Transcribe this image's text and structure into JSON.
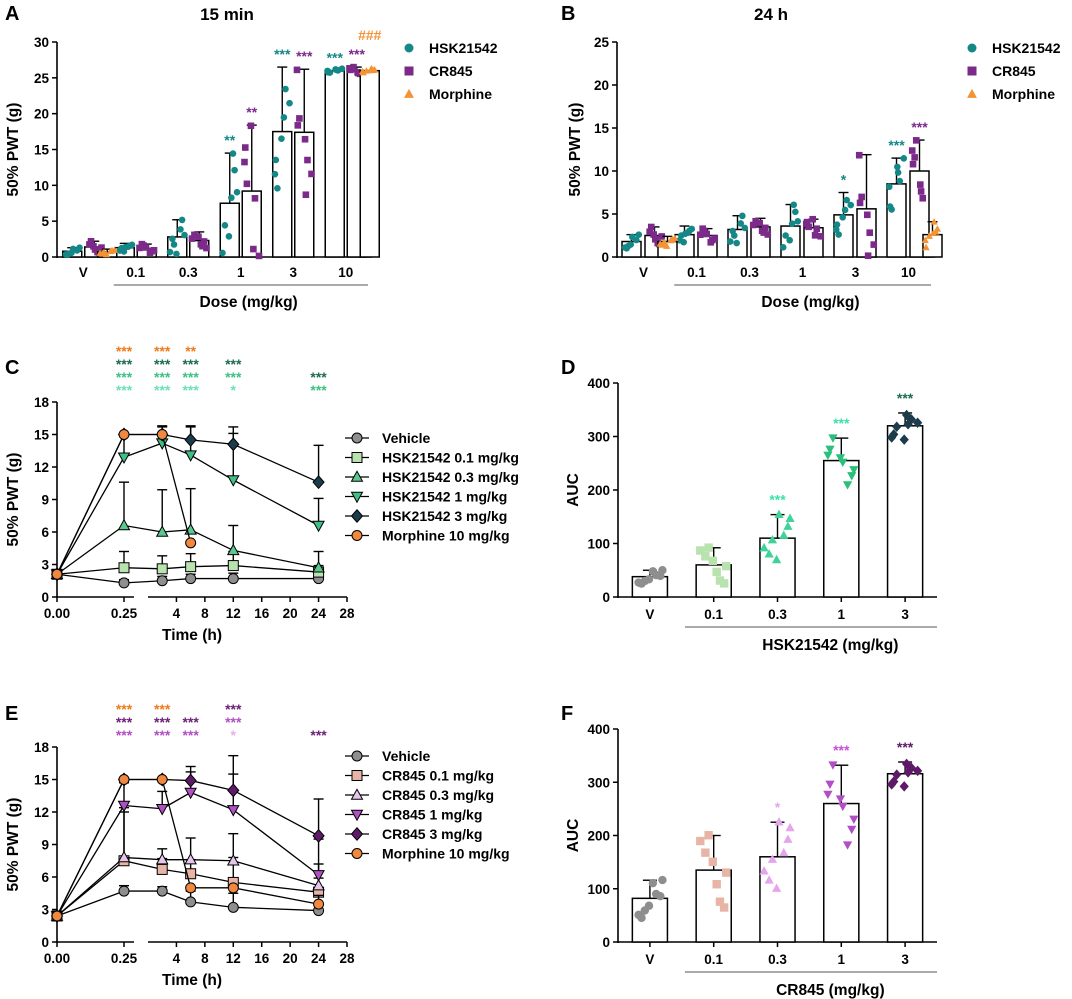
{
  "chart_data": [
    {
      "id": "A",
      "type": "bar",
      "panel_label": "A",
      "title": "15 min",
      "ylabel": "50% PWT (g)",
      "xlabel": "Dose (mg/kg)",
      "ylim": [
        0,
        30
      ],
      "yticks": [
        0,
        5,
        10,
        15,
        20,
        25,
        30
      ],
      "categories": [
        "V",
        "0.1",
        "0.3",
        "1",
        "3",
        "10"
      ],
      "series": [
        {
          "name": "HSK21542",
          "color": "#148787",
          "marker": "circle",
          "values": [
            0.8,
            1.3,
            2.8,
            7.5,
            17.5,
            26
          ],
          "errors": [
            0.5,
            0.6,
            2.4,
            7.0,
            9.0,
            0
          ],
          "sig": [
            "",
            "",
            "",
            "**",
            "***",
            "***"
          ]
        },
        {
          "name": "CR845",
          "color": "#7b2a8a",
          "marker": "square",
          "values": [
            1.4,
            1.2,
            2.3,
            9.2,
            17.4,
            26
          ],
          "errors": [
            0.8,
            0.6,
            1.2,
            9.2,
            8.8,
            0.5
          ],
          "sig": [
            "",
            "",
            "",
            "**",
            "***",
            "***"
          ]
        },
        {
          "name": "Morphine",
          "color": "#f39333",
          "marker": "triangle",
          "values": [
            0.7,
            null,
            null,
            null,
            null,
            26
          ],
          "errors": [
            0.4,
            null,
            null,
            null,
            null,
            0
          ],
          "sig": [
            "",
            "",
            "",
            "",
            "",
            "###"
          ]
        }
      ]
    },
    {
      "id": "B",
      "type": "bar",
      "panel_label": "B",
      "title": "24 h",
      "ylabel": "50% PWT (g)",
      "xlabel": "Dose (mg/kg)",
      "ylim": [
        0,
        25
      ],
      "yticks": [
        0,
        5,
        10,
        15,
        20,
        25
      ],
      "categories": [
        "V",
        "0.1",
        "0.3",
        "1",
        "3",
        "10"
      ],
      "series": [
        {
          "name": "HSK21542",
          "color": "#148787",
          "marker": "circle",
          "values": [
            1.8,
            2.6,
            3.2,
            3.6,
            4.9,
            8.5
          ],
          "errors": [
            0.8,
            1.0,
            1.6,
            2.5,
            2.6,
            3.0
          ],
          "sig": [
            "",
            "",
            "",
            "",
            "*",
            "***"
          ]
        },
        {
          "name": "CR845",
          "color": "#7b2a8a",
          "marker": "square",
          "values": [
            2.5,
            2.5,
            3.5,
            3.4,
            5.6,
            10.0
          ],
          "errors": [
            1.0,
            0.8,
            1.0,
            1.0,
            6.3,
            3.6
          ],
          "sig": [
            "",
            "",
            "",
            "",
            "",
            "***"
          ]
        },
        {
          "name": "Morphine",
          "color": "#f39333",
          "marker": "triangle",
          "values": [
            1.8,
            null,
            null,
            null,
            null,
            2.6
          ],
          "errors": [
            0.6,
            null,
            null,
            null,
            null,
            1.5
          ],
          "sig": [
            "",
            "",
            "",
            "",
            "",
            ""
          ]
        }
      ]
    },
    {
      "id": "C",
      "type": "line",
      "panel_label": "C",
      "ylabel": "50% PWT (g)",
      "xlabel": "Time (h)",
      "ylim": [
        0,
        18
      ],
      "yticks": [
        0,
        3,
        6,
        9,
        12,
        15,
        18
      ],
      "xticks_left": [
        "0.00",
        "0.25"
      ],
      "xticks_right": [
        "4",
        "8",
        "12",
        "16",
        "20",
        "24",
        "28"
      ],
      "x": [
        0,
        0.25,
        2,
        6,
        12,
        24
      ],
      "series": [
        {
          "name": "Vehicle",
          "color": "#8e8e8e",
          "marker": "circle",
          "values": [
            2.1,
            1.3,
            1.5,
            1.7,
            1.7,
            1.7
          ],
          "errors": [
            0.3,
            0.3,
            0.4,
            0.4,
            0.5,
            0.5
          ]
        },
        {
          "name": "HSK21542 0.1 mg/kg",
          "color": "#b8e2ae",
          "marker": "square",
          "values": [
            2.1,
            2.7,
            2.6,
            2.8,
            2.9,
            2.3
          ],
          "errors": [
            0.3,
            1.5,
            1.2,
            1.2,
            1.3,
            0.6
          ]
        },
        {
          "name": "HSK21542 0.3 mg/kg",
          "color": "#5bc98f",
          "marker": "triangle",
          "values": [
            2.1,
            6.6,
            6.0,
            6.2,
            4.3,
            2.7
          ],
          "errors": [
            0.3,
            4.0,
            3.9,
            3.8,
            2.3,
            1.5
          ]
        },
        {
          "name": "HSK21542 1 mg/kg",
          "color": "#3fbf85",
          "marker": "tri-down",
          "values": [
            2.1,
            12.9,
            14.2,
            13.1,
            10.8,
            6.6
          ],
          "errors": [
            0.3,
            2.1,
            1.5,
            2.6,
            4.3,
            2.5
          ]
        },
        {
          "name": "HSK21542 3 mg/kg",
          "color": "#1c3c4c",
          "marker": "diamond",
          "values": [
            2.1,
            15.0,
            15.0,
            14.5,
            14.1,
            10.6
          ],
          "errors": [
            0.3,
            0,
            0.8,
            1.3,
            1.6,
            3.4
          ]
        },
        {
          "name": "Morphine 10 mg/kg",
          "color": "#f0883e",
          "marker": "circle",
          "values": [
            2.1,
            15.0,
            15.0,
            5.0,
            null,
            null
          ],
          "errors": [
            0.3,
            0,
            0,
            0,
            null,
            null
          ]
        }
      ],
      "sig_groups": [
        {
          "at": "0.25",
          "lines": [
            {
              "text": "***",
              "color": "#f07a1a"
            },
            {
              "text": "***",
              "color": "#1d6b4f"
            },
            {
              "text": "***",
              "color": "#3fbf85"
            },
            {
              "text": "***",
              "color": "#6de0b8"
            }
          ]
        },
        {
          "at": "2",
          "lines": [
            {
              "text": "***",
              "color": "#f07a1a"
            },
            {
              "text": "***",
              "color": "#1d6b4f"
            },
            {
              "text": "***",
              "color": "#3fbf85"
            },
            {
              "text": "***",
              "color": "#6de0b8"
            }
          ]
        },
        {
          "at": "6",
          "lines": [
            {
              "text": "**",
              "color": "#f07a1a"
            },
            {
              "text": "***",
              "color": "#1d6b4f"
            },
            {
              "text": "***",
              "color": "#3fbf85"
            },
            {
              "text": "***",
              "color": "#6de0b8"
            }
          ]
        },
        {
          "at": "12",
          "lines": [
            {
              "text": "***",
              "color": "#1d6b4f"
            },
            {
              "text": "***",
              "color": "#3fbf85"
            },
            {
              "text": "*",
              "color": "#6de0b8"
            }
          ]
        },
        {
          "at": "24",
          "lines": [
            {
              "text": "***",
              "color": "#1d6b4f"
            },
            {
              "text": "***",
              "color": "#3fbf85"
            }
          ]
        }
      ]
    },
    {
      "id": "D",
      "type": "bar",
      "panel_label": "D",
      "ylabel": "AUC",
      "xlabel": "HSK21542 (mg/kg)",
      "ylim": [
        0,
        400
      ],
      "yticks": [
        0,
        100,
        200,
        300,
        400
      ],
      "categories": [
        "V",
        "0.1",
        "0.3",
        "1",
        "3"
      ],
      "values": [
        38,
        60,
        110,
        255,
        320
      ],
      "errors": [
        12,
        32,
        44,
        42,
        24
      ],
      "marker_colors": [
        "#8e8e8e",
        "#b8e2ae",
        "#3fd39a",
        "#28c07a",
        "#1c3c4c"
      ],
      "markers": [
        "circle",
        "square",
        "triangle",
        "tri-down",
        "diamond"
      ],
      "sig": [
        {
          "text": "",
          "color": ""
        },
        {
          "text": "",
          "color": ""
        },
        {
          "text": "***",
          "color": "#3fe0a8"
        },
        {
          "text": "***",
          "color": "#3fe0a8"
        },
        {
          "text": "***",
          "color": "#1d6b4f"
        }
      ]
    },
    {
      "id": "E",
      "type": "line",
      "panel_label": "E",
      "ylabel": "50% PWT (g)",
      "xlabel": "Time (h)",
      "ylim": [
        0,
        18
      ],
      "yticks": [
        0,
        3,
        6,
        9,
        12,
        15,
        18
      ],
      "xticks_left": [
        "0.00",
        "0.25"
      ],
      "xticks_right": [
        "4",
        "8",
        "12",
        "16",
        "20",
        "24",
        "28"
      ],
      "x": [
        0,
        0.25,
        2,
        6,
        12,
        24
      ],
      "series": [
        {
          "name": "Vehicle",
          "color": "#8e8e8e",
          "marker": "circle",
          "values": [
            2.4,
            4.7,
            4.7,
            3.7,
            3.2,
            2.9
          ],
          "errors": [
            0.4,
            0.5,
            0.4,
            1.0,
            1.3,
            0.6
          ]
        },
        {
          "name": "CR845 0.1 mg/kg",
          "color": "#e8b4a6",
          "marker": "square",
          "values": [
            2.4,
            7.5,
            6.7,
            6.3,
            5.5,
            4.6
          ],
          "errors": [
            0.4,
            4.5,
            1.0,
            1.3,
            2.3,
            1.3
          ]
        },
        {
          "name": "CR845 0.3 mg/kg",
          "color": "#e6c6ea",
          "marker": "triangle",
          "values": [
            2.4,
            7.8,
            7.6,
            7.6,
            7.5,
            5.2
          ],
          "errors": [
            0.4,
            4.6,
            1.0,
            2.0,
            2.5,
            2.0
          ]
        },
        {
          "name": "CR845 1 mg/kg",
          "color": "#b14fc5",
          "marker": "tri-down",
          "values": [
            2.4,
            12.6,
            12.3,
            13.8,
            12.2,
            6.2
          ],
          "errors": [
            0.4,
            2.1,
            1.6,
            2.4,
            5.0,
            3.3
          ]
        },
        {
          "name": "CR845 3 mg/kg",
          "color": "#5e1a68",
          "marker": "diamond",
          "values": [
            2.4,
            15.0,
            15.0,
            14.9,
            14.0,
            9.8
          ],
          "errors": [
            0.4,
            0,
            0,
            0.8,
            1.5,
            3.4
          ]
        },
        {
          "name": "Morphine 10 mg/kg",
          "color": "#f0883e",
          "marker": "circle",
          "values": [
            2.4,
            15.0,
            15.0,
            5.0,
            5.0,
            3.5
          ],
          "errors": [
            0.4,
            0,
            0,
            0,
            0,
            0.8
          ]
        }
      ],
      "sig_groups": [
        {
          "at": "0.25",
          "lines": [
            {
              "text": "***",
              "color": "#f07a1a"
            },
            {
              "text": "***",
              "color": "#6b1f76"
            },
            {
              "text": "***",
              "color": "#b14fc5"
            }
          ]
        },
        {
          "at": "2",
          "lines": [
            {
              "text": "***",
              "color": "#f07a1a"
            },
            {
              "text": "***",
              "color": "#6b1f76"
            },
            {
              "text": "***",
              "color": "#b14fc5"
            }
          ]
        },
        {
          "at": "6",
          "lines": [
            {
              "text": "***",
              "color": "#6b1f76"
            },
            {
              "text": "***",
              "color": "#b14fc5"
            }
          ]
        },
        {
          "at": "12",
          "lines": [
            {
              "text": "***",
              "color": "#6b1f76"
            },
            {
              "text": "***",
              "color": "#b14fc5"
            },
            {
              "text": "*",
              "color": "#e6b0ef"
            }
          ]
        },
        {
          "at": "24",
          "lines": [
            {
              "text": "***",
              "color": "#6b1f76"
            }
          ]
        }
      ]
    },
    {
      "id": "F",
      "type": "bar",
      "panel_label": "F",
      "ylabel": "AUC",
      "xlabel": "CR845 (mg/kg)",
      "ylim": [
        0,
        400
      ],
      "yticks": [
        0,
        100,
        200,
        300,
        400
      ],
      "categories": [
        "V",
        "0.1",
        "0.3",
        "1",
        "3"
      ],
      "values": [
        82,
        135,
        160,
        260,
        316
      ],
      "errors": [
        34,
        65,
        65,
        72,
        22
      ],
      "marker_colors": [
        "#8e8e8e",
        "#e8b4a6",
        "#e6a4ec",
        "#b14fc5",
        "#5e1a68"
      ],
      "markers": [
        "circle",
        "square",
        "triangle",
        "tri-down",
        "diamond"
      ],
      "sig": [
        {
          "text": "",
          "color": ""
        },
        {
          "text": "",
          "color": ""
        },
        {
          "text": "*",
          "color": "#e6a4ec"
        },
        {
          "text": "***",
          "color": "#c74fd8"
        },
        {
          "text": "***",
          "color": "#5e1a68"
        }
      ]
    }
  ]
}
